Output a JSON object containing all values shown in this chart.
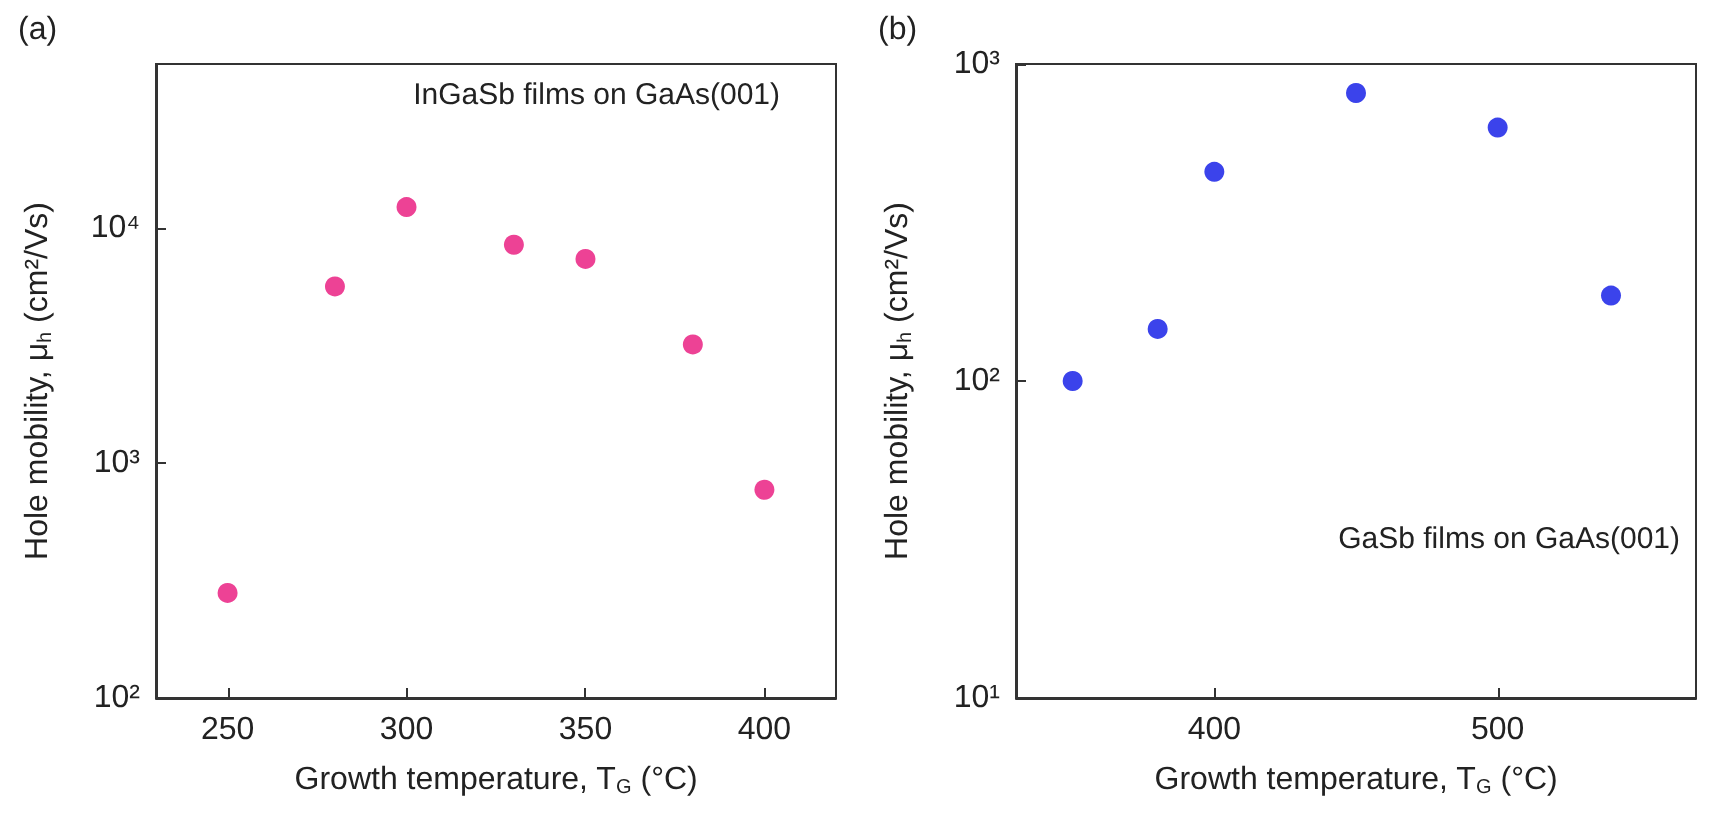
{
  "chart_data": [
    {
      "type": "scatter",
      "title": "(a)",
      "xlabel": "Growth temperature, T$_{G}$ (°C)",
      "ylabel": "Hole mobility, μ$_{h}$ (cm²/Vs)",
      "annotations": [
        "InGaSb films on GaAs(001)"
      ],
      "log": "y",
      "marker": "circle",
      "series": [
        {
          "color": "#e8137a",
          "x": [
            250,
            280,
            300,
            330,
            350,
            380,
            400
          ],
          "values": [
            280,
            5650,
            12300,
            8500,
            7400,
            3200,
            770
          ]
        }
      ],
      "xlim": [
        230,
        420
      ],
      "xticks": [
        250,
        300,
        350,
        400
      ],
      "ylim": [
        100,
        50000
      ],
      "yticks": [
        {
          "value": 100,
          "label": "10²"
        },
        {
          "value": 1000,
          "label": "10³"
        },
        {
          "value": 10000,
          "label": "10⁴"
        }
      ]
    },
    {
      "type": "scatter",
      "title": "(b)",
      "xlabel": "Growth temperature, T$_{G}$ (°C)",
      "ylabel": "Hole mobility, μ$_{h}$ (cm²/Vs)",
      "annotations": [
        "GaSb films on GaAs(001)"
      ],
      "log": "y",
      "marker": "circle",
      "series": [
        {
          "color": "#0a14e6",
          "x": [
            350,
            380,
            400,
            450,
            500,
            540
          ],
          "values": [
            100,
            146,
            457,
            810,
            630,
            186
          ]
        }
      ],
      "xlim": [
        330,
        570
      ],
      "xticks": [
        400,
        500
      ],
      "ylim": [
        10,
        1000
      ],
      "yticks": [
        {
          "value": 10,
          "label": "10¹"
        },
        {
          "value": 100,
          "label": "10²"
        },
        {
          "value": 1000,
          "label": "10³"
        }
      ]
    }
  ]
}
